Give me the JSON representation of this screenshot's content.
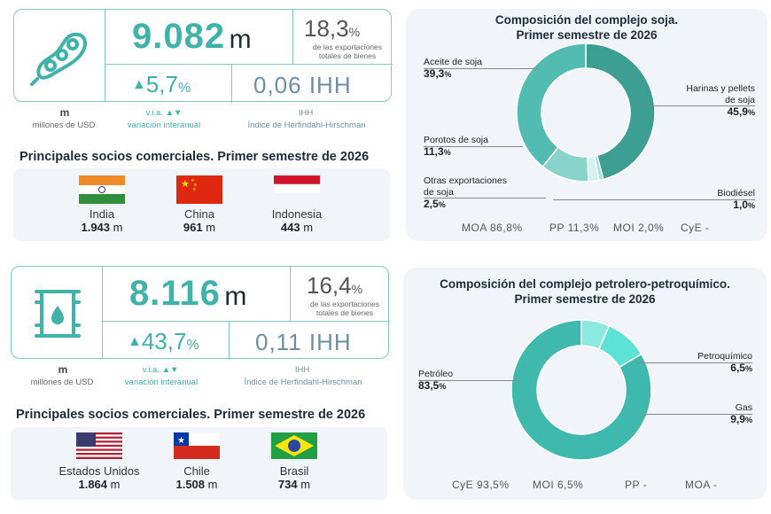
{
  "top": {
    "kpi": {
      "value": "9.082",
      "unit": "m",
      "share_pct": "18,3",
      "share_note": "de las exportaciones totales de bienes",
      "yoy": "5,7",
      "ihh": "0,06 IHH"
    },
    "legend": {
      "m_label": "m",
      "m_sub": "millones de USD",
      "via_label": "v.i.a.",
      "via_sub": "variación interanual",
      "ihh_label": "IHH",
      "ihh_sub": "Índice de Herfindahl-Hirschman"
    },
    "partners_title": "Principales socios comerciales. Primer semestre de 2026",
    "partners": [
      {
        "name": "India",
        "value": "1.943",
        "unit": "m"
      },
      {
        "name": "China",
        "value": "961",
        "unit": "m"
      },
      {
        "name": "Indonesia",
        "value": "443",
        "unit": "m"
      }
    ]
  },
  "bottom": {
    "kpi": {
      "value": "8.116",
      "unit": "m",
      "share_pct": "16,4",
      "share_note": "de las exportaciones totales de bienes",
      "yoy": "43,7",
      "ihh": "0,11 IHH"
    },
    "legend": {
      "m_label": "m",
      "m_sub": "millones de USD",
      "via_label": "v.i.a.",
      "via_sub": "variación interanual",
      "ihh_label": "IHH",
      "ihh_sub": "Índice de Herfindahl-Hirschman"
    },
    "partners_title": "Principales socios comerciales. Primer semestre de 2026",
    "partners": [
      {
        "name": "Estados Unidos",
        "value": "1.864",
        "unit": "m"
      },
      {
        "name": "Chile",
        "value": "1.508",
        "unit": "m"
      },
      {
        "name": "Brasil",
        "value": "734",
        "unit": "m"
      }
    ]
  },
  "chart_data": [
    {
      "type": "pie",
      "title_line1": "Composición del complejo soja.",
      "title_line2": "Primer semestre de 2026",
      "slices": [
        {
          "label_lines": [
            "Harinas y pellets",
            "de soja"
          ],
          "value": 45.9,
          "value_text": "45,9",
          "color": "#3d9e93"
        },
        {
          "label_lines": [
            "Biodiésel"
          ],
          "value": 1.0,
          "value_text": "1,0",
          "color": "#9fe4dd"
        },
        {
          "label_lines": [
            "Otras exportaciones",
            "de soja"
          ],
          "value": 2.5,
          "value_text": "2,5",
          "color": "#d6f2ee"
        },
        {
          "label_lines": [
            "Porotos de soja"
          ],
          "value": 11.3,
          "value_text": "11,3",
          "color": "#88d3cb"
        },
        {
          "label_lines": [
            "Aceite de soja"
          ],
          "value": 39.3,
          "value_text": "39,3",
          "color": "#52bcb2"
        }
      ],
      "footer": [
        {
          "text": "MOA 86,8%"
        },
        {
          "text": "PP 11,3%"
        },
        {
          "text": "MOI 2,0%"
        },
        {
          "text": "CyE -"
        }
      ]
    },
    {
      "type": "pie",
      "title_line1": "Composición del complejo petrolero-petroquímico.",
      "title_line2": "Primer semestre de 2026",
      "slices": [
        {
          "label_lines": [
            "Petroquímico"
          ],
          "value": 6.5,
          "value_text": "6,5",
          "color": "#8ce9df"
        },
        {
          "label_lines": [
            "Gas"
          ],
          "value": 9.9,
          "value_text": "9,9",
          "color": "#5ce3d6"
        },
        {
          "label_lines": [
            "Petróleo"
          ],
          "value": 83.5,
          "value_text": "83,5",
          "color": "#3fb8ad"
        }
      ],
      "footer": [
        {
          "text": "CyE 93,5%"
        },
        {
          "text": "MOI 6,5%"
        },
        {
          "text": "PP -"
        },
        {
          "text": "MOA -"
        }
      ]
    }
  ],
  "colors": {
    "accent": "#3fb3a9",
    "slate": "#6d8fa6",
    "panel": "#f1f5f9"
  },
  "icons": {
    "top": "soybean-pod-icon",
    "bottom": "oil-barrel-icon"
  }
}
